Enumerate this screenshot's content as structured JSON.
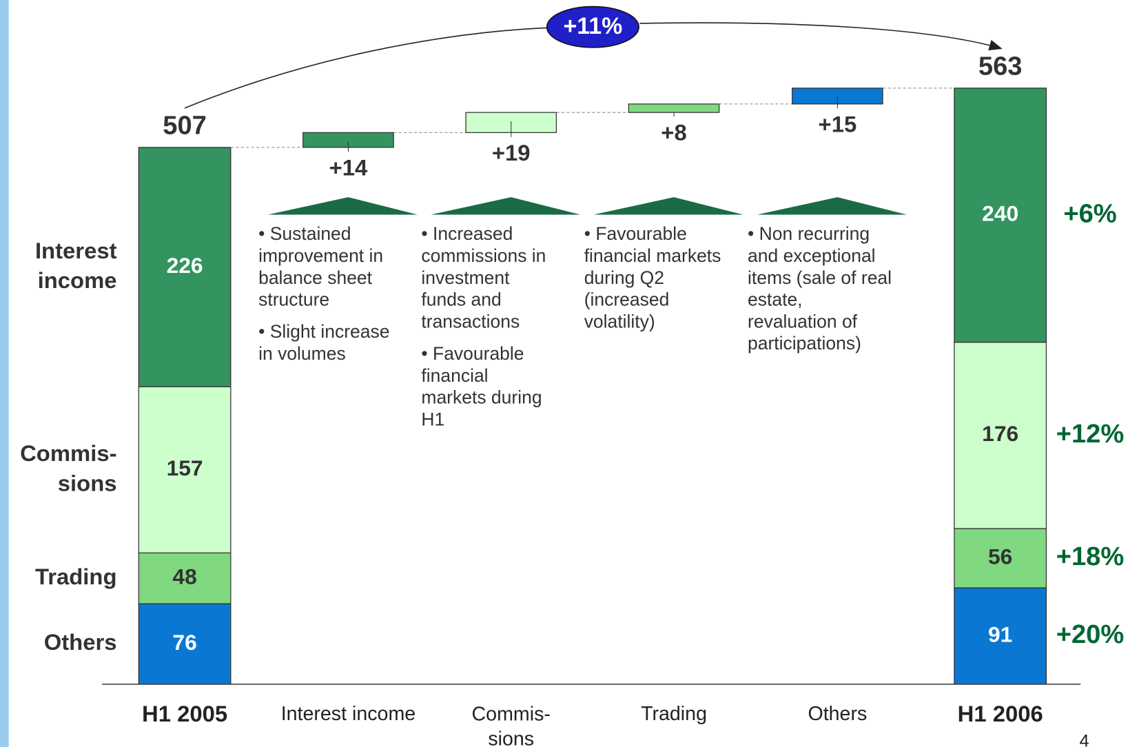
{
  "chart_data": {
    "type": "waterfall",
    "ylim": [
      0,
      640
    ],
    "components": [
      {
        "name": "Others",
        "color": "#0a78d2"
      },
      {
        "name": "Trading",
        "color": "#80d880"
      },
      {
        "name": "Commis-\nsions",
        "color": "#ccffcc"
      },
      {
        "name": "Interest\nincome",
        "color": "#339460"
      }
    ],
    "start": {
      "label": "H1 2005",
      "total": 507,
      "segments": [
        76,
        48,
        157,
        226
      ]
    },
    "steps": [
      {
        "category": "Interest income",
        "value": 14,
        "value_label": "+14",
        "color": "#339460",
        "notes": [
          "• Sustained\nimprovement in\nbalance sheet\nstructure",
          "• Slight increase\nin volumes"
        ]
      },
      {
        "category": "Commis-\nsions",
        "value": 19,
        "value_label": "+19",
        "color": "#ccffcc",
        "notes": [
          "• Increased\ncommissions in\ninvestment\nfunds and\ntransactions",
          "• Favourable\nfinancial\nmarkets during\nH1"
        ]
      },
      {
        "category": "Trading",
        "value": 8,
        "value_label": "+8",
        "color": "#80d880",
        "notes": [
          "• Favourable\nfinancial markets\nduring Q2\n(increased\nvolatility)"
        ]
      },
      {
        "category": "Others",
        "value": 15,
        "value_label": "+15",
        "color": "#0a78d2",
        "notes": [
          "• Non recurring\nand exceptional\nitems (sale of real\nestate,\nrevaluation of\nparticipations)"
        ]
      }
    ],
    "end": {
      "label": "H1 2006",
      "total": 563,
      "segments": [
        91,
        56,
        176,
        240
      ],
      "growth": [
        20,
        18,
        12,
        6
      ],
      "growth_labels": [
        "+20%",
        "+18%",
        "+12%",
        "+6%"
      ]
    },
    "total_change": {
      "value": 11,
      "label": "+11%"
    }
  },
  "page_number": "4"
}
